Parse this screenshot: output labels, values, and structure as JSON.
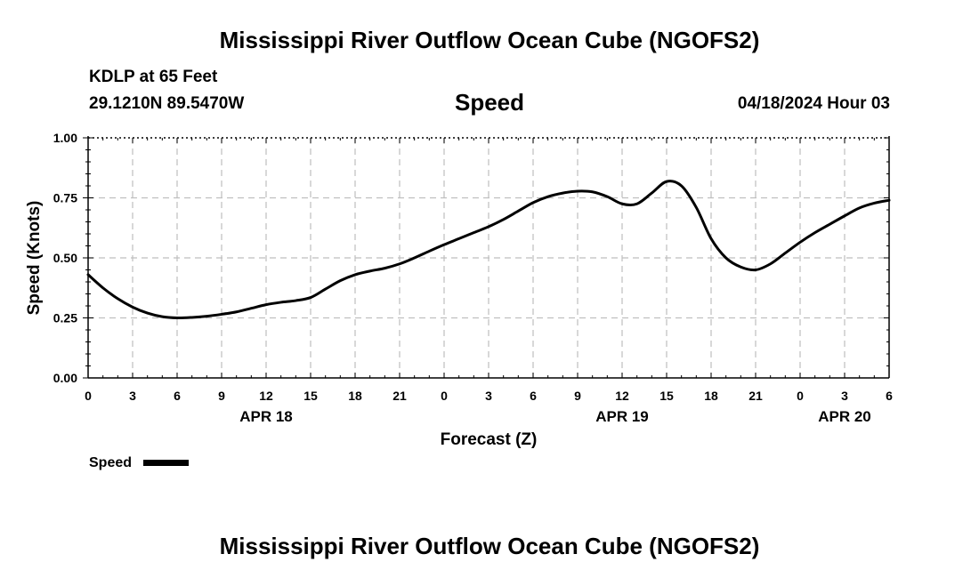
{
  "header": {
    "title": "Mississippi River Outflow Ocean Cube (NGOFS2)",
    "station": "KDLP at 65 Feet",
    "coords": "29.1210N  89.5470W",
    "subtitle": "Speed",
    "timestamp": "04/18/2024 Hour 03"
  },
  "footer": {
    "title": "Mississippi River Outflow Ocean Cube (NGOFS2)"
  },
  "chart_data": {
    "type": "line",
    "title": "Speed",
    "xlabel": "Forecast (Z)",
    "ylabel": "Speed (Knots)",
    "xlim": [
      0,
      54
    ],
    "ylim": [
      0,
      1
    ],
    "x_ticks": [
      0,
      3,
      6,
      9,
      12,
      15,
      18,
      21,
      24,
      27,
      30,
      33,
      36,
      39,
      42,
      45,
      48,
      51,
      54
    ],
    "x_tick_labels": [
      "0",
      "3",
      "6",
      "9",
      "12",
      "15",
      "18",
      "21",
      "0",
      "3",
      "6",
      "9",
      "12",
      "15",
      "18",
      "21",
      "0",
      "3",
      "6"
    ],
    "y_ticks": [
      0,
      0.25,
      0.5,
      0.75,
      1
    ],
    "y_tick_labels": [
      "0.00",
      "0.25",
      "0.50",
      "0.75",
      "1.00"
    ],
    "day_labels": [
      {
        "x": 12,
        "label": "APR 18"
      },
      {
        "x": 36,
        "label": "APR 19"
      },
      {
        "x": 51,
        "label": "APR 20"
      }
    ],
    "grid": true,
    "legend": {
      "position": "bottom-left",
      "label": "Speed",
      "color": "#000000"
    },
    "series": [
      {
        "name": "Speed",
        "color": "#000000",
        "x": [
          0,
          1,
          2,
          3,
          4,
          5,
          6,
          7,
          8,
          9,
          10,
          11,
          12,
          13,
          14,
          15,
          16,
          17,
          18,
          19,
          20,
          21,
          22,
          23,
          24,
          25,
          26,
          27,
          28,
          29,
          30,
          31,
          32,
          33,
          34,
          35,
          36,
          37,
          38,
          39,
          40,
          41,
          42,
          43,
          44,
          45,
          46,
          47,
          48,
          49,
          50,
          51,
          52,
          53,
          54
        ],
        "values": [
          0.43,
          0.375,
          0.33,
          0.295,
          0.27,
          0.255,
          0.25,
          0.252,
          0.257,
          0.265,
          0.275,
          0.29,
          0.305,
          0.315,
          0.322,
          0.335,
          0.37,
          0.405,
          0.43,
          0.445,
          0.457,
          0.475,
          0.5,
          0.528,
          0.555,
          0.58,
          0.605,
          0.63,
          0.66,
          0.695,
          0.73,
          0.755,
          0.77,
          0.778,
          0.775,
          0.755,
          0.725,
          0.725,
          0.77,
          0.818,
          0.8,
          0.71,
          0.58,
          0.5,
          0.462,
          0.45,
          0.475,
          0.52,
          0.565,
          0.605,
          0.64,
          0.675,
          0.708,
          0.728,
          0.74
        ]
      }
    ]
  }
}
